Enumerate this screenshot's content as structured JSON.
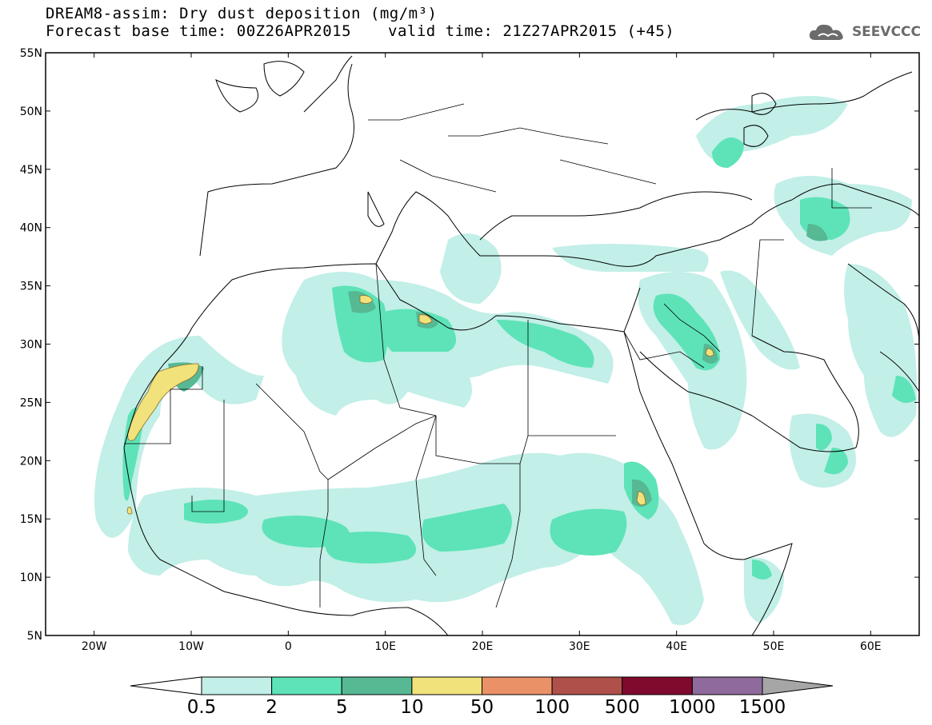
{
  "title": {
    "line1": "DREAM8-assim: Dry dust deposition (mg/m³)",
    "base_time": "Forecast base time: 00Z26APR2015",
    "valid_time": "valid time: 21Z27APR2015 (+45)"
  },
  "logo": {
    "text": "SEEVCCC",
    "icon": "cloud-icon"
  },
  "map": {
    "lon_range": [
      -25,
      65
    ],
    "lat_range": [
      5,
      55
    ],
    "lat_ticks": [
      {
        "value": 55,
        "label": "55N"
      },
      {
        "value": 50,
        "label": "50N"
      },
      {
        "value": 45,
        "label": "45N"
      },
      {
        "value": 40,
        "label": "40N"
      },
      {
        "value": 35,
        "label": "35N"
      },
      {
        "value": 30,
        "label": "30N"
      },
      {
        "value": 25,
        "label": "25N"
      },
      {
        "value": 20,
        "label": "20N"
      },
      {
        "value": 15,
        "label": "15N"
      },
      {
        "value": 10,
        "label": "10N"
      },
      {
        "value": 5,
        "label": "5N"
      }
    ],
    "lon_ticks": [
      {
        "value": -20,
        "label": "20W"
      },
      {
        "value": -10,
        "label": "10W"
      },
      {
        "value": 0,
        "label": "0"
      },
      {
        "value": 10,
        "label": "10E"
      },
      {
        "value": 20,
        "label": "20E"
      },
      {
        "value": 30,
        "label": "30E"
      },
      {
        "value": 40,
        "label": "40E"
      },
      {
        "value": 50,
        "label": "50E"
      },
      {
        "value": 60,
        "label": "60E"
      }
    ]
  },
  "colorbar": {
    "labels": [
      "0.5",
      "2",
      "5",
      "10",
      "50",
      "100",
      "500",
      "1000",
      "1500"
    ],
    "colors": [
      "#c2efe8",
      "#5de3b7",
      "#57b894",
      "#f1e27b",
      "#eb9168",
      "#b0504a",
      "#800a2e",
      "#8e6b9c",
      "#a6a6a6"
    ]
  }
}
